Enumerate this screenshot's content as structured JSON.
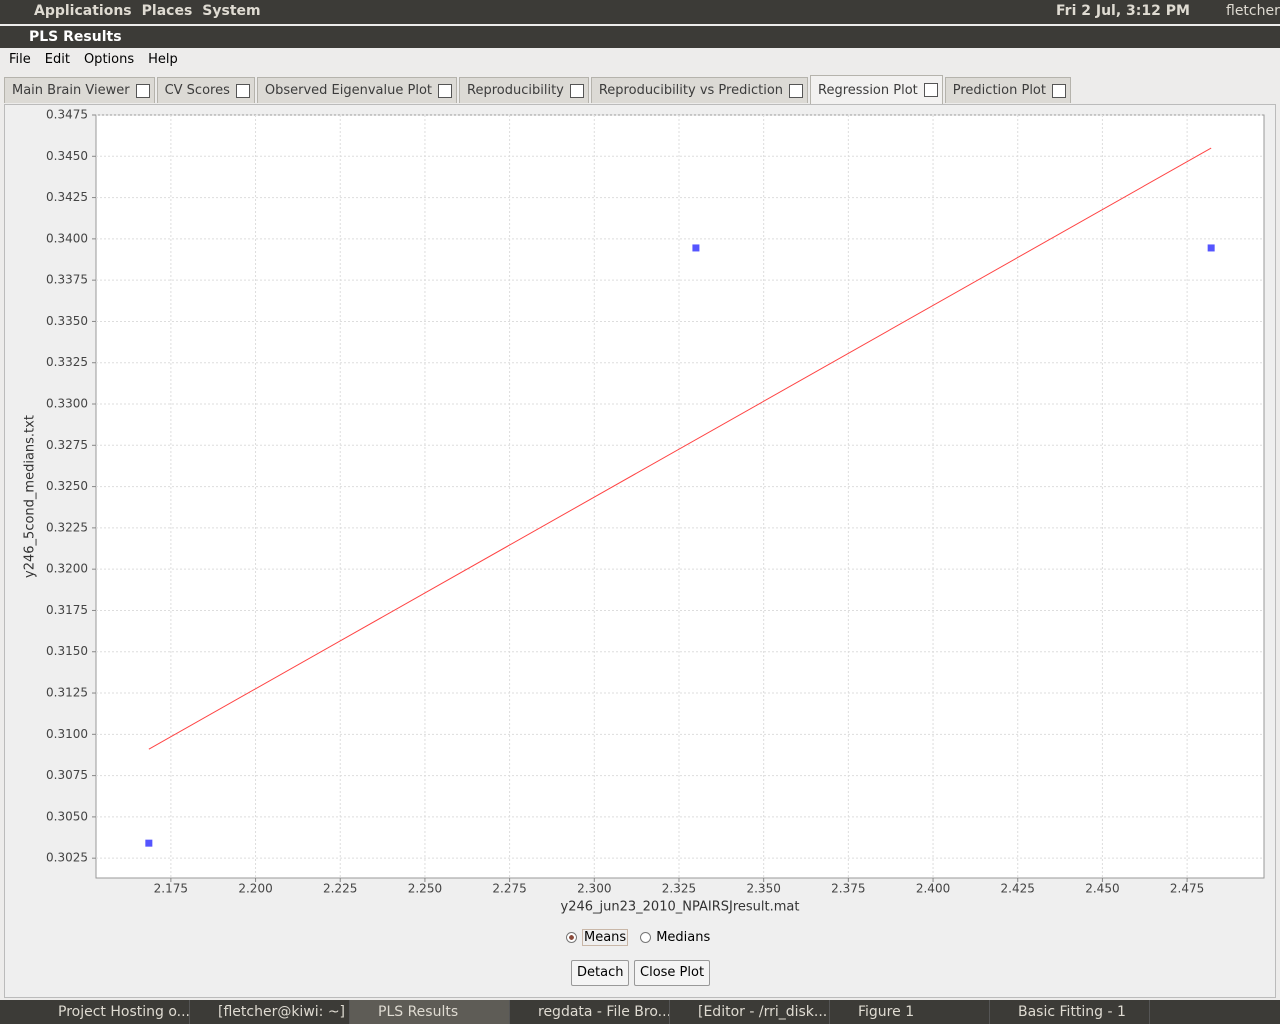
{
  "top_panel": {
    "menus": [
      "Applications",
      "Places",
      "System"
    ],
    "clock": "Fri  2 Jul,  3:12 PM",
    "user": "fletcher"
  },
  "window": {
    "title": "PLS Results",
    "menu": [
      "File",
      "Edit",
      "Options",
      "Help"
    ],
    "tabs": [
      "Main Brain Viewer",
      "CV Scores",
      "Observed Eigenvalue Plot",
      "Reproducibility",
      "Reproducibility vs Prediction",
      "Regression Plot",
      "Prediction Plot"
    ],
    "active_tab": 5
  },
  "chart_data": {
    "type": "scatter",
    "x_label": "y246_jun23_2010_NPAIRSJresult.mat",
    "y_label": "y246_5cond_medians.txt",
    "x": [
      2.1685,
      2.33,
      2.4821
    ],
    "values": [
      0.30341,
      0.33945,
      0.33945
    ],
    "color": "#5555ff",
    "line": {
      "x": [
        2.1685,
        2.4821
      ],
      "values": [
        0.3091,
        0.3455
      ],
      "color": "#ff4444"
    },
    "xlim": [
      2.1529,
      2.4977
    ],
    "ylim": [
      0.3013,
      0.3475
    ],
    "grid": true,
    "xticks": [
      {
        "value": 2.175,
        "label": "2.175"
      },
      {
        "value": 2.2,
        "label": "2.200"
      },
      {
        "value": 2.225,
        "label": "2.225"
      },
      {
        "value": 2.25,
        "label": "2.250"
      },
      {
        "value": 2.275,
        "label": "2.275"
      },
      {
        "value": 2.3,
        "label": "2.300"
      },
      {
        "value": 2.325,
        "label": "2.325"
      },
      {
        "value": 2.35,
        "label": "2.350"
      },
      {
        "value": 2.375,
        "label": "2.375"
      },
      {
        "value": 2.4,
        "label": "2.400"
      },
      {
        "value": 2.425,
        "label": "2.425"
      },
      {
        "value": 2.45,
        "label": "2.450"
      },
      {
        "value": 2.475,
        "label": "2.475"
      }
    ],
    "yticks": [
      {
        "value": 0.3025,
        "label": "0.3025"
      },
      {
        "value": 0.305,
        "label": "0.3050"
      },
      {
        "value": 0.3075,
        "label": "0.3075"
      },
      {
        "value": 0.31,
        "label": "0.3100"
      },
      {
        "value": 0.3125,
        "label": "0.3125"
      },
      {
        "value": 0.315,
        "label": "0.3150"
      },
      {
        "value": 0.3175,
        "label": "0.3175"
      },
      {
        "value": 0.32,
        "label": "0.3200"
      },
      {
        "value": 0.3225,
        "label": "0.3225"
      },
      {
        "value": 0.325,
        "label": "0.3250"
      },
      {
        "value": 0.3275,
        "label": "0.3275"
      },
      {
        "value": 0.33,
        "label": "0.3300"
      },
      {
        "value": 0.3325,
        "label": "0.3325"
      },
      {
        "value": 0.335,
        "label": "0.3350"
      },
      {
        "value": 0.3375,
        "label": "0.3375"
      },
      {
        "value": 0.34,
        "label": "0.3400"
      },
      {
        "value": 0.3425,
        "label": "0.3425"
      },
      {
        "value": 0.345,
        "label": "0.3450"
      },
      {
        "value": 0.3475,
        "label": "0.3475"
      }
    ]
  },
  "controls": {
    "radios": [
      "Means",
      "Medians"
    ],
    "selected": 0,
    "buttons": [
      "Detach",
      "Close Plot"
    ]
  },
  "taskbar": {
    "items": [
      "Project Hosting o...",
      "[fletcher@kiwi: ~]",
      "PLS Results",
      "regdata - File Bro...",
      "[Editor - /rri_disk...",
      "Figure 1",
      "Basic Fitting - 1"
    ],
    "active": 2
  }
}
